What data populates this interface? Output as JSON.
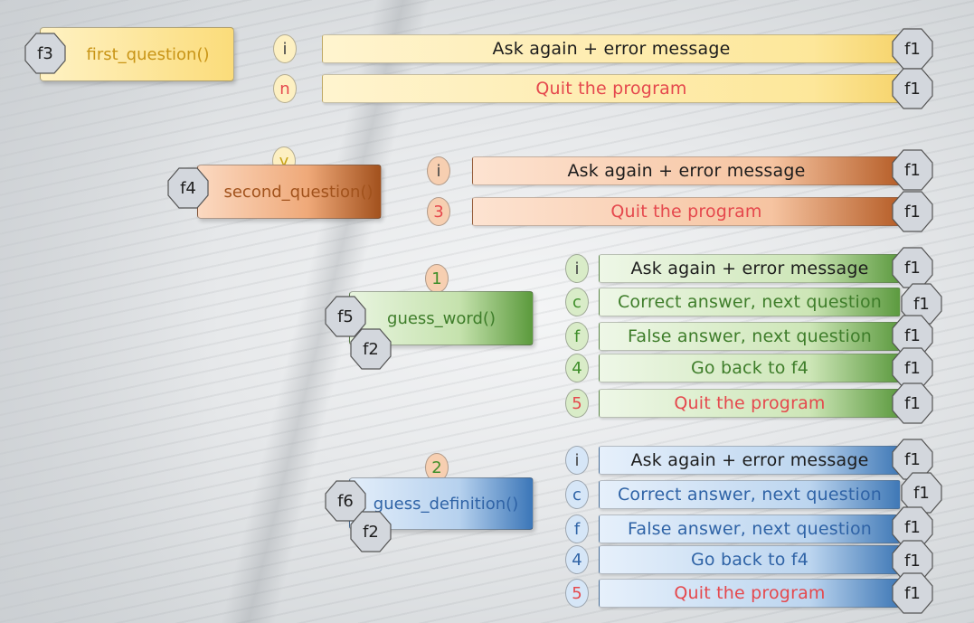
{
  "functions": {
    "f3": {
      "tag": "f3",
      "name": "first_question()"
    },
    "f4": {
      "tag": "f4",
      "name": "second_question()"
    },
    "f5": {
      "tag": "f5",
      "name": "guess_word()",
      "sub": "f2"
    },
    "f6": {
      "tag": "f6",
      "name": "guess_definition()",
      "sub": "f2"
    }
  },
  "keys": {
    "i": "i",
    "n": "n",
    "y": "y",
    "k3": "3",
    "k1": "1",
    "k2": "2",
    "c": "c",
    "f": "f",
    "k4": "4",
    "k5": "5"
  },
  "actions": {
    "ask": "Ask again + error message",
    "quit": "Quit the program",
    "correct": "Correct answer, next question",
    "false": "False answer, next question",
    "back": "Go back to f4",
    "f1": "f1"
  },
  "colors": {
    "yellow": "#fde79a",
    "orange": "#efa979",
    "green": "#c5e2ad",
    "blue": "#b6d1ee",
    "red_text": "#e5484d"
  }
}
